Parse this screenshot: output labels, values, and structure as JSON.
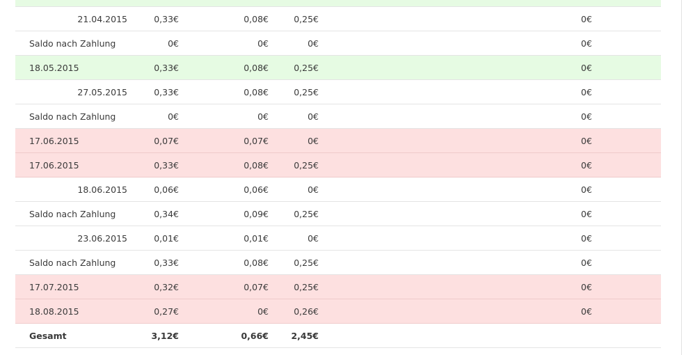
{
  "colors": {
    "paid_row": "#e6fbe3",
    "overdue_row": "#fde0e0",
    "border": "#e4e4e4"
  },
  "rows": [
    {
      "label": "",
      "type": "green",
      "indent": false,
      "v1": "",
      "v2": "",
      "v3": "",
      "v4": ""
    },
    {
      "label": "21.04.2015",
      "type": "plain",
      "indent": true,
      "v1": "0,33€",
      "v2": "0,08€",
      "v3": "0,25€",
      "v4": "0€"
    },
    {
      "label": "Saldo nach Zahlung",
      "type": "plain",
      "indent": false,
      "v1": "0€",
      "v2": "0€",
      "v3": "0€",
      "v4": "0€"
    },
    {
      "label": "18.05.2015",
      "type": "green",
      "indent": false,
      "v1": "0,33€",
      "v2": "0,08€",
      "v3": "0,25€",
      "v4": "0€"
    },
    {
      "label": "27.05.2015",
      "type": "plain",
      "indent": true,
      "v1": "0,33€",
      "v2": "0,08€",
      "v3": "0,25€",
      "v4": "0€"
    },
    {
      "label": "Saldo nach Zahlung",
      "type": "plain",
      "indent": false,
      "v1": "0€",
      "v2": "0€",
      "v3": "0€",
      "v4": "0€"
    },
    {
      "label": "17.06.2015",
      "type": "red",
      "indent": false,
      "v1": "0,07€",
      "v2": "0,07€",
      "v3": "0€",
      "v4": "0€"
    },
    {
      "label": "17.06.2015",
      "type": "red",
      "indent": false,
      "v1": "0,33€",
      "v2": "0,08€",
      "v3": "0,25€",
      "v4": "0€"
    },
    {
      "label": "18.06.2015",
      "type": "plain",
      "indent": true,
      "v1": "0,06€",
      "v2": "0,06€",
      "v3": "0€",
      "v4": "0€"
    },
    {
      "label": "Saldo nach Zahlung",
      "type": "plain",
      "indent": false,
      "v1": "0,34€",
      "v2": "0,09€",
      "v3": "0,25€",
      "v4": "0€"
    },
    {
      "label": "23.06.2015",
      "type": "plain",
      "indent": true,
      "v1": "0,01€",
      "v2": "0,01€",
      "v3": "0€",
      "v4": "0€"
    },
    {
      "label": "Saldo nach Zahlung",
      "type": "plain",
      "indent": false,
      "v1": "0,33€",
      "v2": "0,08€",
      "v3": "0,25€",
      "v4": "0€"
    },
    {
      "label": "17.07.2015",
      "type": "red",
      "indent": false,
      "v1": "0,32€",
      "v2": "0,07€",
      "v3": "0,25€",
      "v4": "0€"
    },
    {
      "label": "18.08.2015",
      "type": "red",
      "indent": false,
      "v1": "0,27€",
      "v2": "0€",
      "v3": "0,26€",
      "v4": "0€"
    },
    {
      "label": "Gesamt",
      "type": "total",
      "indent": false,
      "v1": "3,12€",
      "v2": "0,66€",
      "v3": "2,45€",
      "v4": ""
    }
  ]
}
